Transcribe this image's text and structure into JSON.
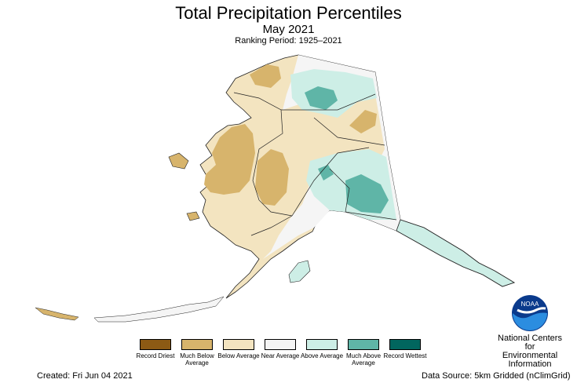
{
  "title": "Total Precipitation Percentiles",
  "subtitle": "May 2021",
  "ranking_period": "Ranking Period: 1925–2021",
  "legend": [
    {
      "label": "Record Driest",
      "color": "#8c5a14"
    },
    {
      "label": "Much Below Average",
      "color": "#d7b46c"
    },
    {
      "label": "Below Average",
      "color": "#f3e4c0"
    },
    {
      "label": "Near Average",
      "color": "#f5f5f5"
    },
    {
      "label": "Above Average",
      "color": "#cdeee6"
    },
    {
      "label": "Much Above Average",
      "color": "#5fb5a7"
    },
    {
      "label": "Record Wettest",
      "color": "#01665e"
    }
  ],
  "created": "Created: Fri Jun 04 2021",
  "data_source": "Data Source: 5km Gridded (nClimGrid)",
  "org_lines": [
    "National Centers for",
    "Environmental",
    "Information"
  ],
  "logo_text": "NOAA"
}
